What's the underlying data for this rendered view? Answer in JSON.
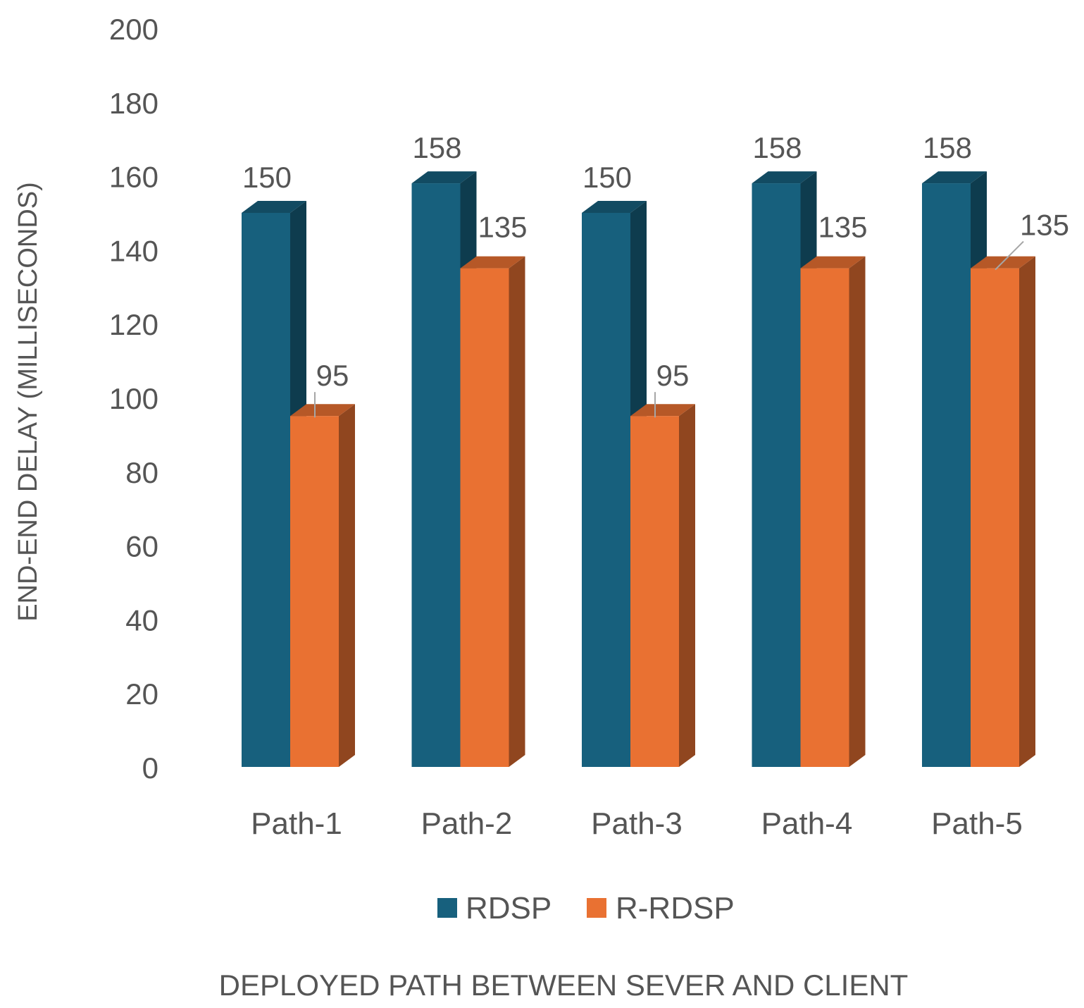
{
  "chart_data": {
    "type": "bar",
    "style": "3d-clustered-column",
    "title": "",
    "xlabel": "DEPLOYED PATH BETWEEN SEVER AND CLIENT",
    "ylabel": "END-END DELAY (MILLISECONDS)",
    "ylim": [
      0,
      200
    ],
    "ytick_step": 20,
    "yticks": [
      "0",
      "20",
      "40",
      "60",
      "80",
      "100",
      "120",
      "140",
      "160",
      "180",
      "200"
    ],
    "grid": false,
    "legend_position": "bottom",
    "categories": [
      "Path-1",
      "Path-2",
      "Path-3",
      "Path-4",
      "Path-5"
    ],
    "series": [
      {
        "name": "RDSP",
        "values": [
          150,
          158,
          150,
          158,
          158
        ],
        "labels": [
          "150",
          "158",
          "150",
          "158",
          "158"
        ],
        "color": "#17607d"
      },
      {
        "name": "R-RDSP",
        "values": [
          95,
          135,
          95,
          135,
          135
        ],
        "labels": [
          "95",
          "135",
          "95",
          "135",
          "135"
        ],
        "color": "#e97132"
      }
    ]
  }
}
